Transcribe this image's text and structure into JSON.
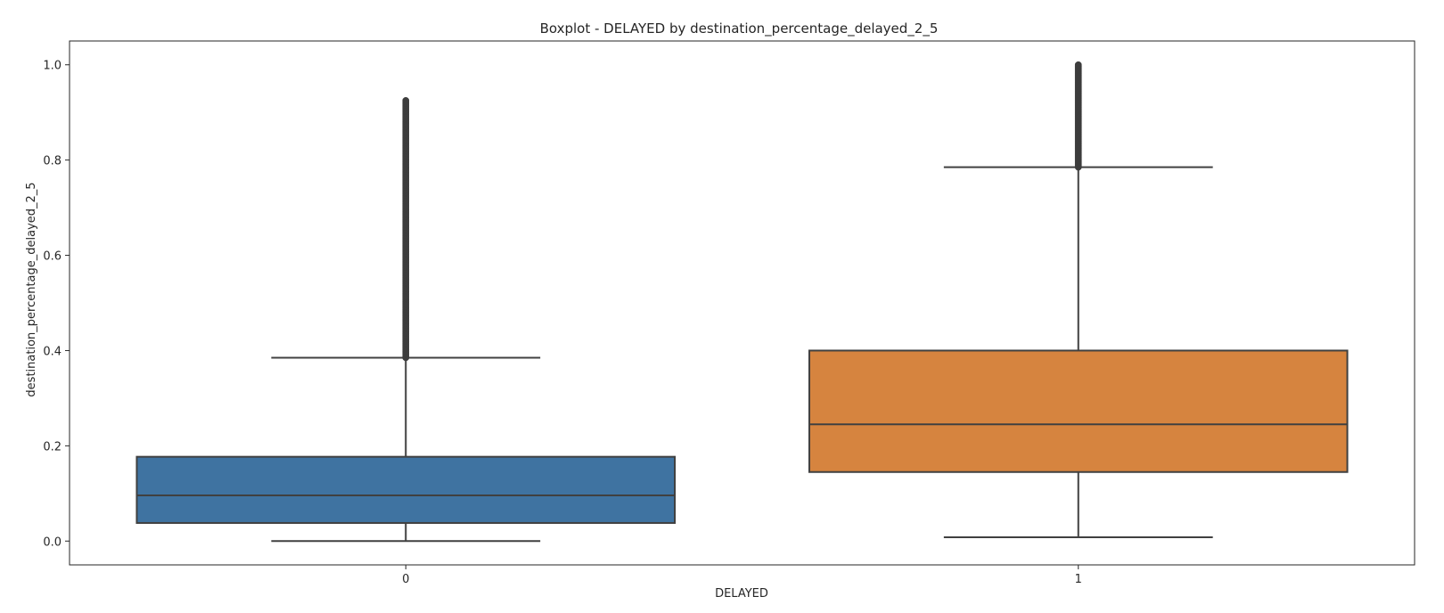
{
  "chart_data": {
    "type": "boxplot",
    "title": "Boxplot - DELAYED by destination_percentage_delayed_2_5",
    "xlabel": "DELAYED",
    "ylabel": "destination_percentage_delayed_2_5",
    "ylim": [
      -0.05,
      1.05
    ],
    "yticks": [
      "0.0",
      "0.2",
      "0.4",
      "0.6",
      "0.8",
      "1.0"
    ],
    "grid": false,
    "categories": [
      "0",
      "1"
    ],
    "boxes": [
      {
        "category": "0",
        "color": "#3f73a1",
        "whisker_low": 0.0,
        "q1": 0.038,
        "median": 0.096,
        "q3": 0.177,
        "whisker_high": 0.385,
        "outliers_range": [
          0.385,
          0.925
        ]
      },
      {
        "category": "1",
        "color": "#d6843f",
        "whisker_low": 0.008,
        "q1": 0.145,
        "median": 0.245,
        "q3": 0.4,
        "whisker_high": 0.785,
        "outliers_range": [
          0.785,
          1.0
        ]
      }
    ]
  }
}
